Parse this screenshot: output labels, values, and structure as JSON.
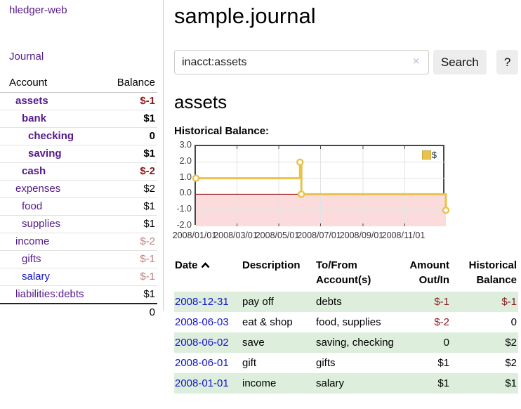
{
  "app": {
    "brand": "hledger-web"
  },
  "sidebar": {
    "journal_link": "Journal",
    "accounts": {
      "col_account": "Account",
      "col_balance": "Balance",
      "rows": [
        {
          "name": "assets",
          "depth": 1,
          "bold": true,
          "link_color": "purple",
          "balance": "$-1",
          "tone": "neg-strong"
        },
        {
          "name": "bank",
          "depth": 2,
          "bold": true,
          "link_color": "purple",
          "balance": "$1",
          "tone": "normal"
        },
        {
          "name": "checking",
          "depth": 3,
          "bold": true,
          "link_color": "purple",
          "balance": "0",
          "tone": "normal"
        },
        {
          "name": "saving",
          "depth": 3,
          "bold": true,
          "link_color": "purple",
          "balance": "$1",
          "tone": "normal"
        },
        {
          "name": "cash",
          "depth": 2,
          "bold": true,
          "link_color": "purple",
          "balance": "$-2",
          "tone": "neg-strong"
        },
        {
          "name": "expenses",
          "depth": 1,
          "bold": false,
          "link_color": "purple",
          "balance": "$2",
          "tone": "normal"
        },
        {
          "name": "food",
          "depth": 2,
          "bold": false,
          "link_color": "purple",
          "balance": "$1",
          "tone": "normal"
        },
        {
          "name": "supplies",
          "depth": 2,
          "bold": false,
          "link_color": "purple",
          "balance": "$1",
          "tone": "normal"
        },
        {
          "name": "income",
          "depth": 1,
          "bold": false,
          "link_color": "purple",
          "balance": "$-2",
          "tone": "neg-soft"
        },
        {
          "name": "gifts",
          "depth": 2,
          "bold": false,
          "link_color": "purple",
          "balance": "$-1",
          "tone": "neg-soft"
        },
        {
          "name": "salary",
          "depth": 2,
          "bold": false,
          "link_color": "blue",
          "balance": "$-1",
          "tone": "neg-soft"
        },
        {
          "name": "liabilities:debts",
          "depth": 1,
          "bold": false,
          "link_color": "purple",
          "balance": "$1",
          "tone": "normal"
        }
      ],
      "total": "0"
    }
  },
  "header": {
    "title": "sample.journal"
  },
  "search": {
    "value": "inacct:assets",
    "clear_icon": "×",
    "button_label": "Search",
    "help_label": "?"
  },
  "content": {
    "account_title": "assets",
    "chart_label": "Historical Balance:"
  },
  "chart_data": {
    "type": "line",
    "mode": "step",
    "title": "Historical Balance",
    "series": [
      {
        "name": "$",
        "color": "#e9c24d",
        "points": [
          [
            "2008-01-01",
            1
          ],
          [
            "2008-06-01",
            2
          ],
          [
            "2008-06-03",
            0
          ],
          [
            "2008-12-31",
            -1
          ]
        ]
      }
    ],
    "x_range": [
      "2008-01-01",
      "2008-12-31"
    ],
    "ylim": [
      -2,
      3
    ],
    "y_ticks": [
      {
        "v": 3,
        "label": "3.0"
      },
      {
        "v": 2,
        "label": "2.0"
      },
      {
        "v": 1,
        "label": "1.0"
      },
      {
        "v": 0,
        "label": "0.0"
      },
      {
        "v": -1,
        "label": "-1.0"
      },
      {
        "v": -2,
        "label": "-2.0"
      }
    ],
    "x_ticks": [
      {
        "date": "2008-01-01",
        "label": "2008/01/01"
      },
      {
        "date": "2008-03-01",
        "label": "2008/03/01"
      },
      {
        "date": "2008-05-01",
        "label": "2008/05/01"
      },
      {
        "date": "2008-07-01",
        "label": "2008/07/01"
      },
      {
        "date": "2008-09-01",
        "label": "2008/09/01"
      },
      {
        "date": "2008-11-01",
        "label": "2008/11/01"
      }
    ],
    "grid": true,
    "legend_position": "top-right",
    "gridline_color": "#e3e3e3",
    "zero_line_color": "#8b0000",
    "negative_region_color": "#fbdbdb",
    "border_color": "#474747"
  },
  "register": {
    "col_date": "Date",
    "col_description": "Description",
    "col_accounts_1": "To/From",
    "col_accounts_2": "Account(s)",
    "col_amount_1": "Amount",
    "col_amount_2": "Out/In",
    "col_balance_1": "Historical",
    "col_balance_2": "Balance",
    "rows": [
      {
        "date": "2008-12-31",
        "description": "pay off",
        "accounts": "debts",
        "amount": "$-1",
        "amount_tone": "neg-strong",
        "balance": "$-1",
        "balance_tone": "neg-strong"
      },
      {
        "date": "2008-06-03",
        "description": "eat & shop",
        "accounts": "food, supplies",
        "amount": "$-2",
        "amount_tone": "neg-strong",
        "balance": "0",
        "balance_tone": "normal"
      },
      {
        "date": "2008-06-02",
        "description": "save",
        "accounts": "saving, checking",
        "amount": "0",
        "amount_tone": "normal",
        "balance": "$2",
        "balance_tone": "normal"
      },
      {
        "date": "2008-06-01",
        "description": "gift",
        "accounts": "gifts",
        "amount": "$1",
        "amount_tone": "normal",
        "balance": "$2",
        "balance_tone": "normal"
      },
      {
        "date": "2008-01-01",
        "description": "income",
        "accounts": "salary",
        "amount": "$1",
        "amount_tone": "normal",
        "balance": "$1",
        "balance_tone": "normal"
      }
    ]
  },
  "colors": {
    "purple_link": "#551a8b",
    "blue_link": "#1414cc",
    "neg_strong": "#8b1a1a",
    "neg_soft": "#c28181",
    "row_green": "#ddeedd",
    "button_bg": "#ededed"
  }
}
